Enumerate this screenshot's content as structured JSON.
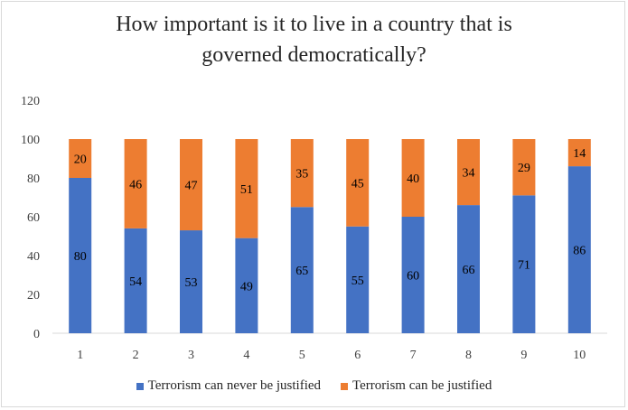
{
  "chart_data": {
    "type": "bar",
    "stacked": true,
    "title_lines": [
      "How important is it to live in a country that is",
      "governed democratically?"
    ],
    "categories": [
      "1",
      "2",
      "3",
      "4",
      "5",
      "6",
      "7",
      "8",
      "9",
      "10"
    ],
    "series": [
      {
        "name": "Terrorism can never be justified",
        "color": "#4472c4",
        "values": [
          80,
          54,
          53,
          49,
          65,
          55,
          60,
          66,
          71,
          86
        ]
      },
      {
        "name": "Terrorism can be justified",
        "color": "#ed7d31",
        "values": [
          20,
          46,
          47,
          51,
          35,
          45,
          40,
          34,
          29,
          14
        ]
      }
    ],
    "ylim": [
      0,
      120
    ],
    "yticks": [
      0,
      20,
      40,
      60,
      80,
      100,
      120
    ],
    "grid": false,
    "data_labels": true,
    "legend_position": "bottom",
    "xlabel": "",
    "ylabel": ""
  }
}
